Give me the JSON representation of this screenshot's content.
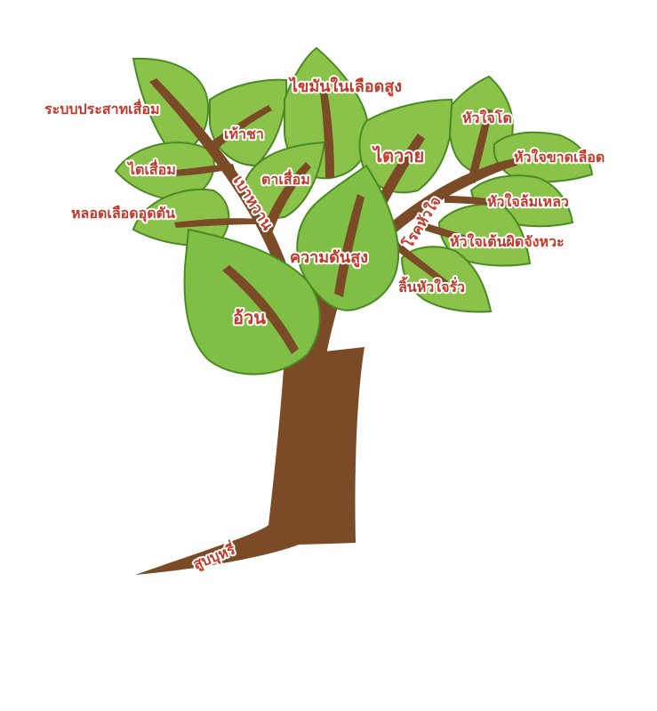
{
  "diagram": {
    "root_label": "สูบบุหรี่",
    "labels": {
      "obesity": "อ้วน",
      "hypertension": "ความดันสูง",
      "diabetes": "เบาหวาน",
      "heart_disease": "โรคหัวใจ",
      "kidney_failure": "ไตวาย",
      "high_cholesterol": "ไขมันในเลือดสูง",
      "nerve_degeneration": "ระบบประสาทเสื่อม",
      "foot_numbness": "เท้าชา",
      "kidney_degeneration": "ไตเสื่อม",
      "eye_degeneration": "ตาเสื่อม",
      "artery_blockage": "หลอดเลือดอุดตัน",
      "enlarged_heart": "หัวใจโต",
      "heart_ischemia": "หัวใจขาดเลือด",
      "heart_failure": "หัวใจล้มเหลว",
      "arrhythmia": "หัวใจเต้นผิดจังหวะ",
      "valve_leak": "ลิ้นหัวใจรั่ว"
    },
    "colors": {
      "trunk": "#7b4a26",
      "leaf": "#8bc34a",
      "leaf_outline": "#4a8a22",
      "label_text": "#c0392b",
      "label_halo": "#ffffff"
    }
  }
}
